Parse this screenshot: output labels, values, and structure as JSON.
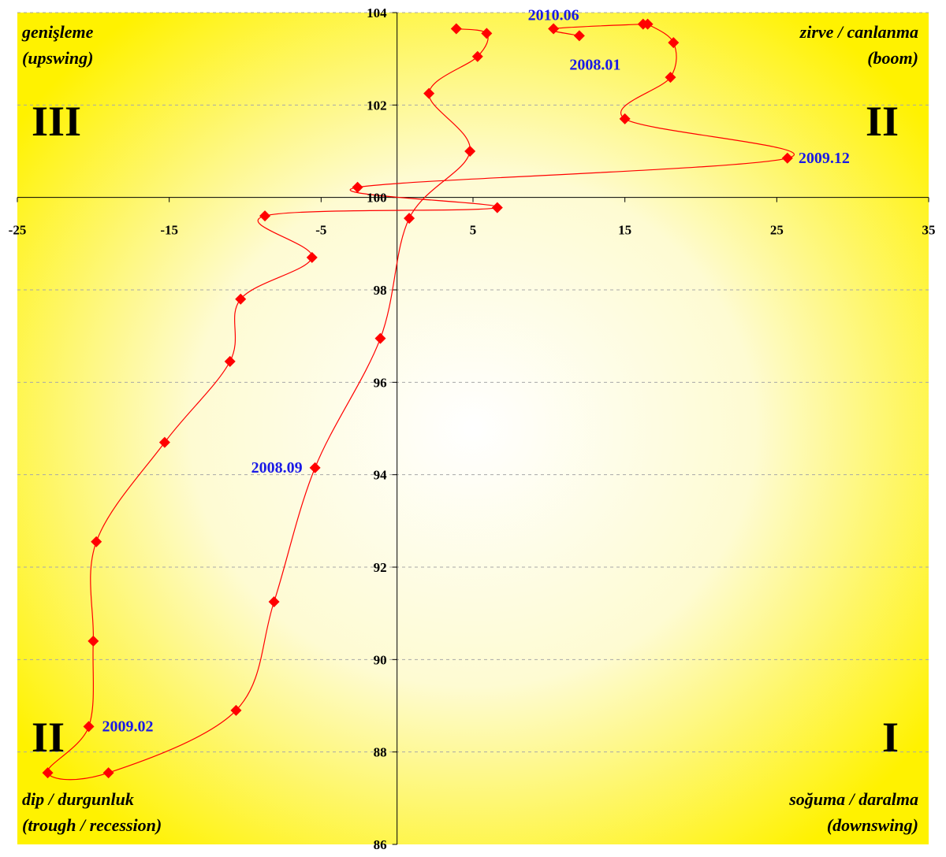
{
  "chart_data": {
    "type": "scatter",
    "title": "",
    "xlabel": "",
    "ylabel": "",
    "xlim": [
      -25,
      35
    ],
    "ylim": [
      86,
      104
    ],
    "x_ticks": [
      -25,
      -15,
      -5,
      5,
      15,
      25,
      35
    ],
    "y_ticks": [
      86,
      88,
      90,
      92,
      94,
      96,
      98,
      100,
      102,
      104
    ],
    "x_tick_labels": [
      "-25",
      "-15",
      "-5",
      "5",
      "15",
      "25",
      "35"
    ],
    "y_tick_labels": [
      "86",
      "88",
      "90",
      "92",
      "94",
      "96",
      "98",
      "100",
      "102",
      "104"
    ],
    "axis_cross": {
      "x": 0,
      "y": 100
    },
    "grid": "horizontal dashed",
    "series": [
      {
        "color": "#ff0000",
        "marker": "diamond",
        "line": "smooth",
        "points": [
          [
            12.0,
            103.5
          ],
          [
            10.3,
            103.65
          ],
          [
            16.2,
            103.75
          ],
          [
            16.5,
            103.75
          ],
          [
            18.2,
            103.35
          ],
          [
            18.0,
            102.6
          ],
          [
            15.0,
            101.7
          ],
          [
            25.7,
            100.85
          ],
          [
            -2.6,
            100.22
          ],
          [
            6.6,
            99.78
          ],
          [
            -8.7,
            99.6
          ],
          [
            -5.6,
            98.7
          ],
          [
            -10.3,
            97.8
          ],
          [
            -11.0,
            96.45
          ],
          [
            -15.3,
            94.7
          ],
          [
            -19.8,
            92.55
          ],
          [
            -20.0,
            90.4
          ],
          [
            -20.3,
            88.55
          ],
          [
            -23.0,
            87.55
          ],
          [
            -19.0,
            87.55
          ],
          [
            -10.6,
            88.9
          ],
          [
            -8.1,
            91.25
          ],
          [
            -5.4,
            94.15
          ],
          [
            -1.1,
            96.95
          ],
          [
            0.8,
            99.55
          ],
          [
            4.8,
            101.0
          ],
          [
            2.1,
            102.25
          ],
          [
            5.3,
            103.05
          ],
          [
            5.9,
            103.55
          ],
          [
            3.9,
            103.65
          ]
        ]
      }
    ],
    "annotations": [
      {
        "text": "2010.06",
        "x": 10.3,
        "y": 103.65
      },
      {
        "text": "2008.01",
        "x": 12.0,
        "y": 103.5
      },
      {
        "text": "2009.12",
        "x": 25.7,
        "y": 100.85
      },
      {
        "text": "2008.09",
        "x": -5.4,
        "y": 94.15
      },
      {
        "text": "2009.02",
        "x": -20.3,
        "y": 88.55
      }
    ],
    "quadrant_labels": {
      "top_left": [
        "genişleme",
        "(upswing)"
      ],
      "top_right": [
        "zirve / canlanma",
        "(boom)"
      ],
      "bottom_left": [
        "dip / durgunluk",
        "(trough / recession)"
      ],
      "bottom_right": [
        "soğuma / daralma",
        "(downswing)"
      ]
    },
    "roman_numerals": {
      "top_left": "III",
      "top_right": "II",
      "bottom_left": "II",
      "bottom_right": "I"
    }
  }
}
